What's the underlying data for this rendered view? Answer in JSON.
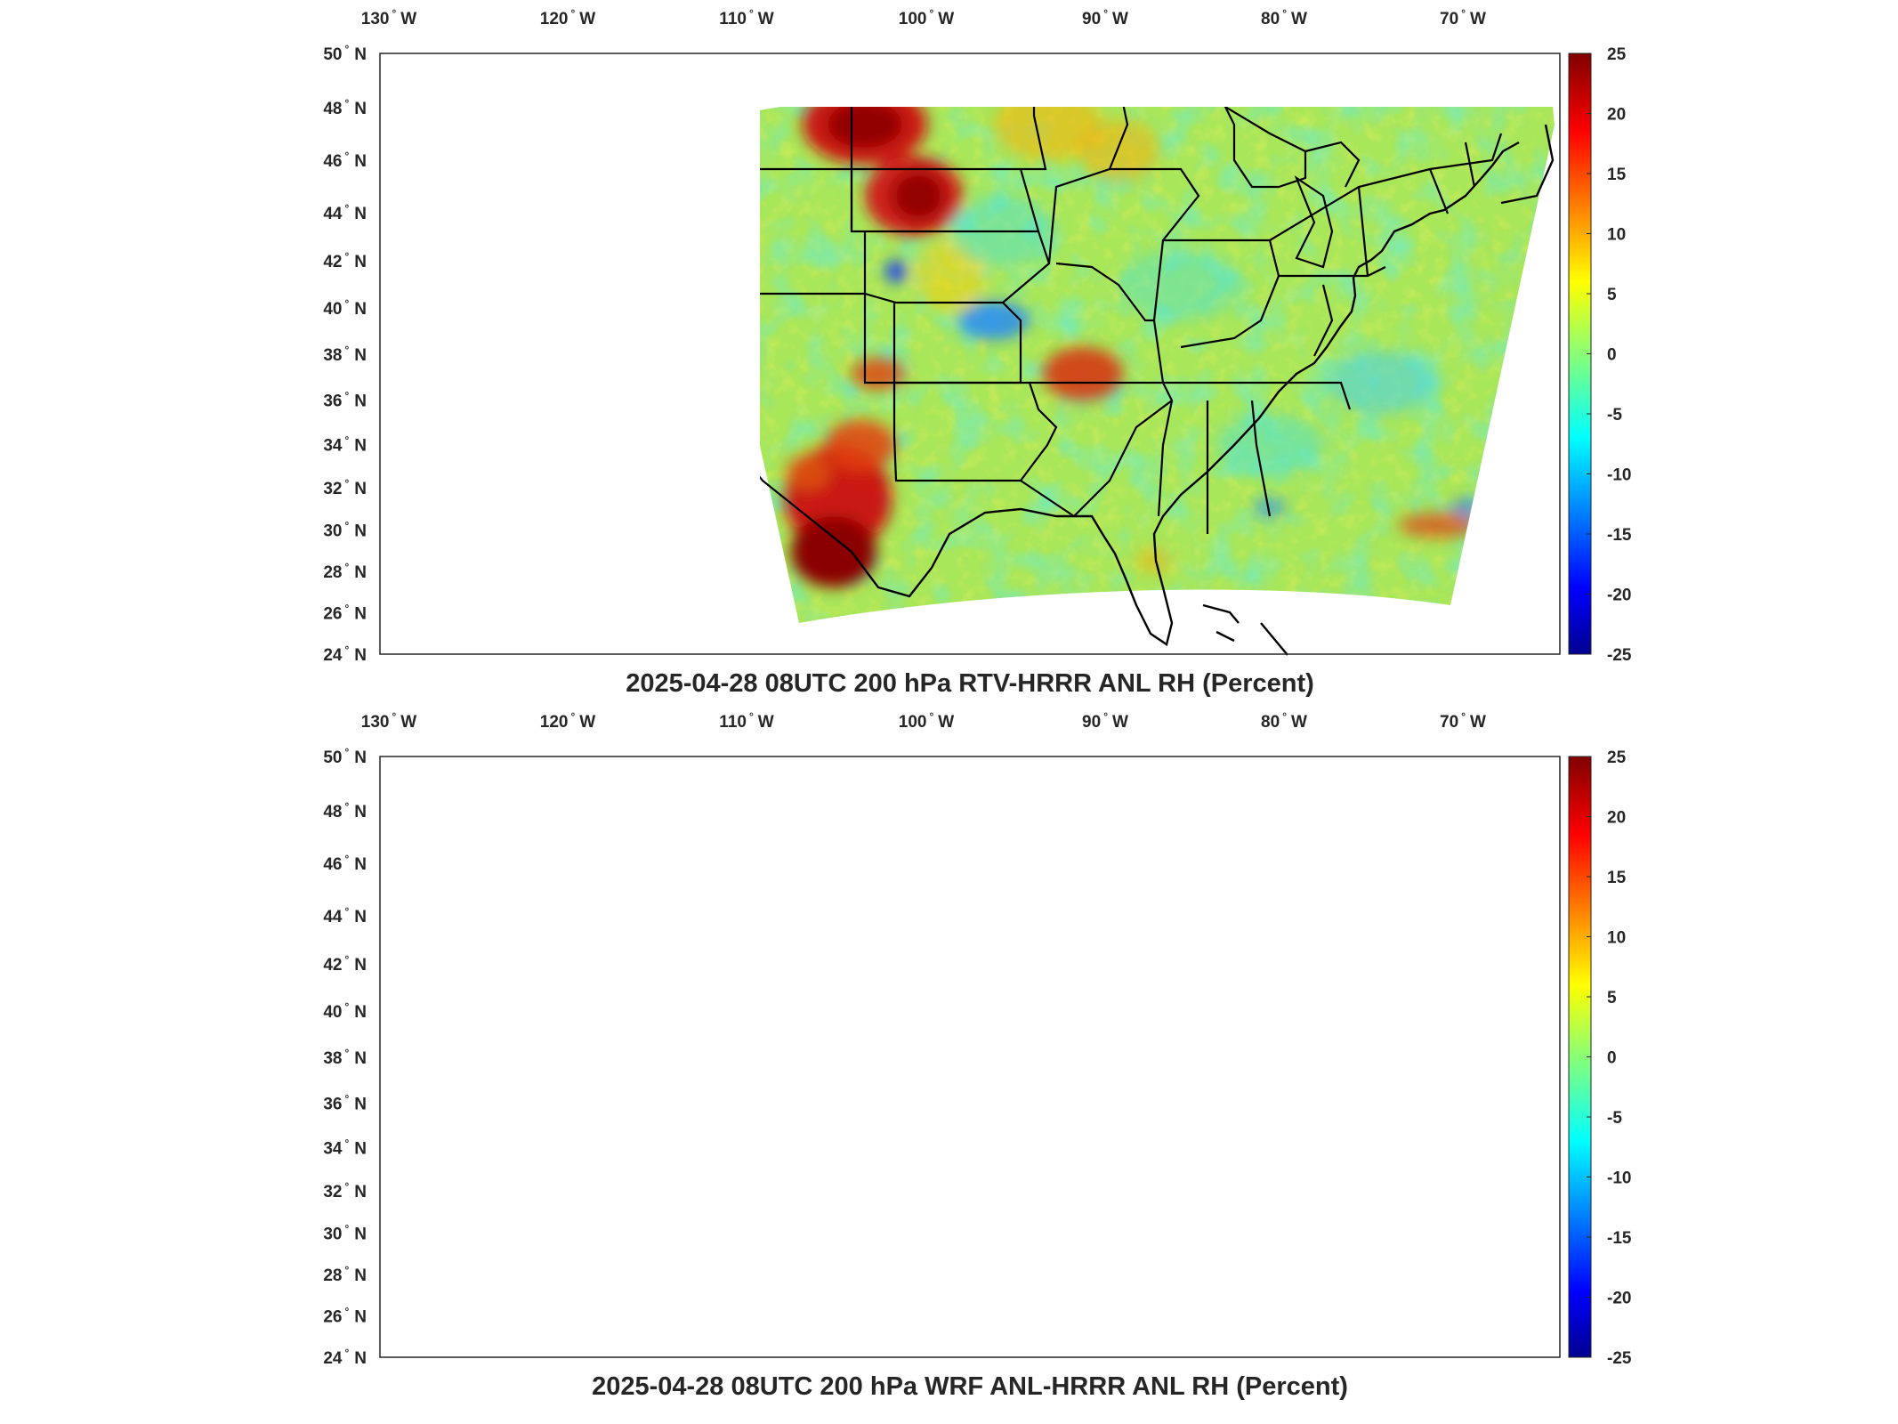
{
  "panels": [
    {
      "title": "2025-04-28 08UTC 200 hPa RTV-HRRR ANL RH (Percent)",
      "variant": "rtv"
    },
    {
      "title": "2025-04-28 08UTC 200 hPa WRF ANL-HRRR ANL RH (Percent)",
      "variant": "wrf"
    }
  ],
  "lon_ticks": [
    {
      "deg": "130",
      "hemi": "W"
    },
    {
      "deg": "120",
      "hemi": "W"
    },
    {
      "deg": "110",
      "hemi": "W"
    },
    {
      "deg": "100",
      "hemi": "W"
    },
    {
      "deg": "90",
      "hemi": "W"
    },
    {
      "deg": "80",
      "hemi": "W"
    },
    {
      "deg": "70",
      "hemi": "W"
    }
  ],
  "lat_ticks": [
    {
      "deg": "50",
      "hemi": "N"
    },
    {
      "deg": "48",
      "hemi": "N"
    },
    {
      "deg": "46",
      "hemi": "N"
    },
    {
      "deg": "44",
      "hemi": "N"
    },
    {
      "deg": "42",
      "hemi": "N"
    },
    {
      "deg": "40",
      "hemi": "N"
    },
    {
      "deg": "38",
      "hemi": "N"
    },
    {
      "deg": "36",
      "hemi": "N"
    },
    {
      "deg": "34",
      "hemi": "N"
    },
    {
      "deg": "32",
      "hemi": "N"
    },
    {
      "deg": "30",
      "hemi": "N"
    },
    {
      "deg": "28",
      "hemi": "N"
    },
    {
      "deg": "26",
      "hemi": "N"
    },
    {
      "deg": "24",
      "hemi": "N"
    }
  ],
  "colorbar": {
    "ticks": [
      "25",
      "20",
      "15",
      "10",
      "5",
      "0",
      "-5",
      "-10",
      "-15",
      "-20",
      "-25"
    ],
    "range": [
      -25,
      25
    ],
    "colormap": "jet",
    "stops": [
      "#00008f",
      "#0000ff",
      "#00ffff",
      "#ffff00",
      "#ff0000",
      "#800000"
    ]
  },
  "colors": {
    "background_field": "#a8e65a",
    "moist_anomaly": "#b01010",
    "dry_anomaly": "#1a6aff"
  }
}
